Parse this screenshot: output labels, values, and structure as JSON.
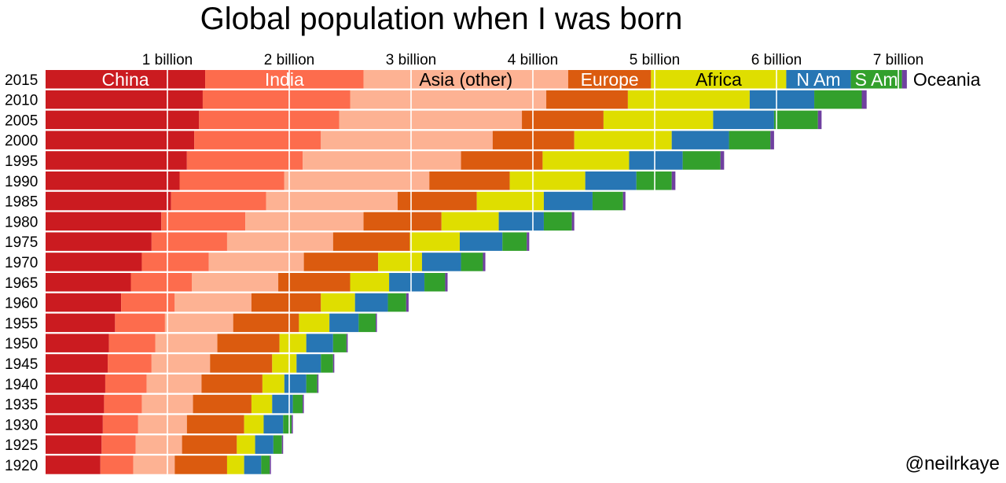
{
  "title": "Global population when I was born",
  "credit": "@neilrkaye",
  "chart_data": {
    "type": "bar",
    "orientation": "horizontal",
    "stacked": true,
    "unit": "billion",
    "xlim": [
      0,
      7.5
    ],
    "x_ticks": [
      {
        "value": 1,
        "label": "1 billion"
      },
      {
        "value": 2,
        "label": "2 billion"
      },
      {
        "value": 3,
        "label": "3 billion"
      },
      {
        "value": 4,
        "label": "4 billion"
      },
      {
        "value": 5,
        "label": "5 billion"
      },
      {
        "value": 6,
        "label": "6 billion"
      },
      {
        "value": 7,
        "label": "7 billion"
      }
    ],
    "grid": "vertical lines at each billion",
    "categories": [
      "2015",
      "2010",
      "2005",
      "2000",
      "1995",
      "1990",
      "1985",
      "1980",
      "1975",
      "1970",
      "1965",
      "1960",
      "1955",
      "1950",
      "1945",
      "1940",
      "1935",
      "1930",
      "1925",
      "1920"
    ],
    "series": [
      {
        "name": "China",
        "color": "#cb1b20",
        "label_color": "#ffffff",
        "values": [
          1.31,
          1.29,
          1.26,
          1.22,
          1.16,
          1.1,
          1.03,
          0.95,
          0.87,
          0.79,
          0.7,
          0.62,
          0.57,
          0.52,
          0.51,
          0.49,
          0.48,
          0.47,
          0.46,
          0.45
        ]
      },
      {
        "name": "India",
        "color": "#fd6c4d",
        "label_color": "#ffffff",
        "values": [
          1.3,
          1.21,
          1.15,
          1.04,
          0.95,
          0.86,
          0.78,
          0.69,
          0.62,
          0.55,
          0.5,
          0.44,
          0.41,
          0.38,
          0.36,
          0.34,
          0.31,
          0.29,
          0.28,
          0.27
        ]
      },
      {
        "name": "Asia (other)",
        "color": "#fdb293",
        "label_color": "#000000",
        "values": [
          1.68,
          1.61,
          1.5,
          1.41,
          1.3,
          1.19,
          1.08,
          0.97,
          0.87,
          0.78,
          0.71,
          0.63,
          0.56,
          0.51,
          0.48,
          0.45,
          0.42,
          0.4,
          0.38,
          0.34
        ]
      },
      {
        "name": "Europe",
        "color": "#db5b0f",
        "label_color": "#ffffff",
        "values": [
          0.68,
          0.67,
          0.67,
          0.67,
          0.67,
          0.66,
          0.65,
          0.64,
          0.63,
          0.61,
          0.59,
          0.57,
          0.54,
          0.51,
          0.51,
          0.5,
          0.48,
          0.47,
          0.45,
          0.43
        ]
      },
      {
        "name": "Africa",
        "color": "#dfde00",
        "label_color": "#000000",
        "values": [
          1.11,
          1.0,
          0.9,
          0.8,
          0.71,
          0.62,
          0.55,
          0.47,
          0.41,
          0.36,
          0.32,
          0.28,
          0.25,
          0.22,
          0.2,
          0.18,
          0.17,
          0.16,
          0.15,
          0.14
        ]
      },
      {
        "name": "N Am",
        "color": "#2776b4",
        "label_color": "#ffffff",
        "values": [
          0.53,
          0.53,
          0.5,
          0.47,
          0.44,
          0.42,
          0.4,
          0.37,
          0.35,
          0.32,
          0.29,
          0.27,
          0.24,
          0.22,
          0.2,
          0.18,
          0.17,
          0.16,
          0.15,
          0.14
        ]
      },
      {
        "name": "S Am",
        "color": "#33a02c",
        "label_color": "#ffffff",
        "values": [
          0.42,
          0.39,
          0.36,
          0.34,
          0.31,
          0.29,
          0.25,
          0.23,
          0.2,
          0.18,
          0.17,
          0.15,
          0.14,
          0.11,
          0.1,
          0.09,
          0.08,
          0.07,
          0.07,
          0.07
        ]
      },
      {
        "name": "Oceania",
        "color": "#7040a0",
        "label_color": "#000000",
        "values": [
          0.04,
          0.04,
          0.03,
          0.03,
          0.03,
          0.03,
          0.02,
          0.02,
          0.02,
          0.02,
          0.02,
          0.02,
          0.01,
          0.01,
          0.01,
          0.01,
          0.01,
          0.01,
          0.01,
          0.01
        ]
      }
    ]
  }
}
